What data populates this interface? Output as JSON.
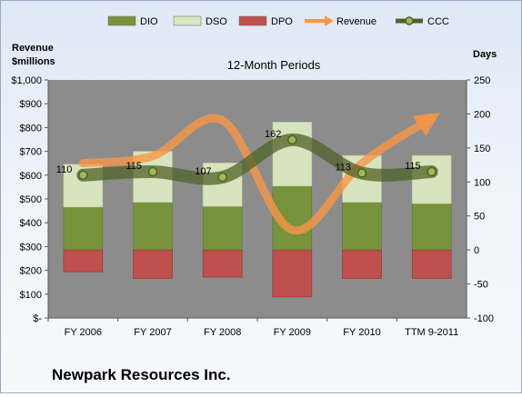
{
  "company": "Newpark Resources Inc.",
  "chart_data": {
    "type": "bar",
    "title": "12-Month Periods",
    "y_left_label": [
      "Revenue",
      "$millions"
    ],
    "y_right_label": "Days",
    "categories": [
      "FY 2006",
      "FY 2007",
      "FY 2008",
      "FY 2009",
      "FY 2010",
      "TTM 9-2011"
    ],
    "left_axis": {
      "min": 0,
      "max": 1000,
      "step": 100,
      "tick_labels": [
        "$-",
        "$100",
        "$200",
        "$300",
        "$400",
        "$500",
        "$600",
        "$700",
        "$800",
        "$900",
        "$1,000"
      ]
    },
    "right_axis": {
      "min": -100,
      "max": 250,
      "step": 50,
      "tick_labels": [
        "-100",
        "-50",
        "0",
        "50",
        "100",
        "150",
        "200",
        "250"
      ]
    },
    "series": [
      {
        "name": "DIO",
        "kind": "bar",
        "axis": "right",
        "color": "#77933c",
        "values": [
          63,
          70,
          64,
          94,
          70,
          68
        ]
      },
      {
        "name": "DSO",
        "kind": "bar",
        "axis": "right",
        "color": "#d7e4bd",
        "values": [
          63,
          75,
          64,
          94,
          69,
          71
        ]
      },
      {
        "name": "DPO",
        "kind": "bar",
        "axis": "right",
        "color": "#c0504d",
        "values": [
          -32,
          -42,
          -40,
          -69,
          -42,
          -42
        ]
      },
      {
        "name": "Revenue",
        "kind": "line",
        "axis": "left",
        "color": "#f79646",
        "values": [
          650,
          680,
          830,
          370,
          650,
          840
        ]
      },
      {
        "name": "CCC",
        "kind": "line",
        "axis": "right",
        "color": "#4f6228",
        "values": [
          110,
          115,
          107,
          162,
          113,
          115
        ],
        "labels": [
          "110",
          "115",
          "107",
          "162",
          "113",
          "115"
        ]
      }
    ],
    "legend_position": "top",
    "grid": false
  }
}
